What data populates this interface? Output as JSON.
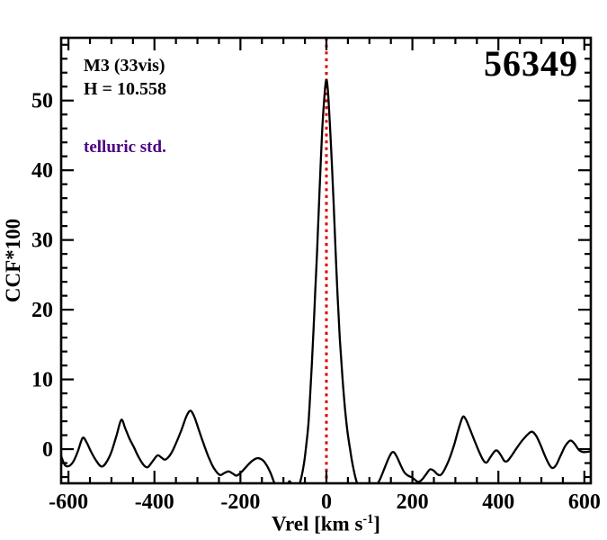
{
  "annotations": {
    "cluster": "M3 (33vis)",
    "magnitude": "H = 10.558",
    "note": "telluric std.",
    "note_color": "#4b0082",
    "id_label": "56349"
  },
  "colors": {
    "background": "#ffffff",
    "frame": "#000000",
    "text": "#000000",
    "curve": "#000000",
    "marker_line": "#dd0000"
  },
  "chart_data": {
    "type": "line",
    "title": "56349",
    "xlabel": "Vrel [km s-1]",
    "xlabel_parts": {
      "main": "Vrel [km s",
      "sup": "-1",
      "close": "]"
    },
    "ylabel": "CCF*100",
    "xlim": [
      -617,
      615
    ],
    "ylim": [
      -4.9,
      59.0
    ],
    "grid": false,
    "legend": "none",
    "x_major_ticks": [
      -600,
      -400,
      -200,
      0,
      200,
      400,
      600
    ],
    "x_minor_step": 50,
    "y_major_ticks": [
      0,
      10,
      20,
      30,
      40,
      50
    ],
    "y_minor_step": 2,
    "marker_line": {
      "x": 0,
      "color": "#dd0000",
      "style": "dotted"
    },
    "series": [
      {
        "name": "CCF",
        "color": "#000000",
        "points": [
          [
            -617,
            -1.0
          ],
          [
            -608,
            -2.3
          ],
          [
            -598,
            -2.4
          ],
          [
            -588,
            -1.7
          ],
          [
            -578,
            -0.3
          ],
          [
            -567,
            1.6
          ],
          [
            -558,
            1.0
          ],
          [
            -548,
            -0.3
          ],
          [
            -535,
            -1.7
          ],
          [
            -523,
            -2.5
          ],
          [
            -512,
            -1.9
          ],
          [
            -500,
            -0.4
          ],
          [
            -488,
            2.0
          ],
          [
            -477,
            4.2
          ],
          [
            -468,
            3.0
          ],
          [
            -458,
            1.5
          ],
          [
            -448,
            0.3
          ],
          [
            -438,
            -1.0
          ],
          [
            -426,
            -2.2
          ],
          [
            -416,
            -2.6
          ],
          [
            -405,
            -1.8
          ],
          [
            -393,
            -0.9
          ],
          [
            -384,
            -1.2
          ],
          [
            -375,
            -1.5
          ],
          [
            -363,
            -0.8
          ],
          [
            -350,
            0.8
          ],
          [
            -337,
            2.8
          ],
          [
            -325,
            4.8
          ],
          [
            -316,
            5.5
          ],
          [
            -307,
            4.6
          ],
          [
            -297,
            2.8
          ],
          [
            -287,
            1.0
          ],
          [
            -275,
            -1.0
          ],
          [
            -262,
            -2.7
          ],
          [
            -248,
            -3.7
          ],
          [
            -237,
            -3.4
          ],
          [
            -227,
            -3.2
          ],
          [
            -218,
            -3.5
          ],
          [
            -209,
            -3.8
          ],
          [
            -198,
            -3.3
          ],
          [
            -186,
            -2.5
          ],
          [
            -173,
            -1.7
          ],
          [
            -161,
            -1.3
          ],
          [
            -150,
            -1.5
          ],
          [
            -140,
            -2.2
          ],
          [
            -130,
            -3.4
          ],
          [
            -120,
            -5.0
          ],
          [
            -110,
            -6.0
          ],
          [
            -100,
            -5.9
          ],
          [
            -91,
            -5.2
          ],
          [
            -86,
            -4.6
          ],
          [
            -80,
            -5.1
          ],
          [
            -72,
            -5.7
          ],
          [
            -65,
            -5.4
          ],
          [
            -58,
            -4.0
          ],
          [
            -52,
            -2.0
          ],
          [
            -47,
            0.5
          ],
          [
            -42,
            3.5
          ],
          [
            -38,
            7.5
          ],
          [
            -34,
            12
          ],
          [
            -30,
            17
          ],
          [
            -26,
            22.5
          ],
          [
            -22,
            28
          ],
          [
            -18,
            34
          ],
          [
            -14,
            40
          ],
          [
            -10,
            45.5
          ],
          [
            -6,
            49.5
          ],
          [
            -3,
            51.8
          ],
          [
            0,
            53
          ],
          [
            3,
            51.8
          ],
          [
            6,
            49
          ],
          [
            9,
            45.5
          ],
          [
            13,
            40.5
          ],
          [
            17,
            35
          ],
          [
            21,
            29
          ],
          [
            26,
            22
          ],
          [
            31,
            16
          ],
          [
            37,
            10.5
          ],
          [
            43,
            6
          ],
          [
            49,
            2.5
          ],
          [
            55,
            0
          ],
          [
            61,
            -2.2
          ],
          [
            68,
            -4.2
          ],
          [
            76,
            -5.6
          ],
          [
            88,
            -6.3
          ],
          [
            100,
            -6.3
          ],
          [
            112,
            -5.6
          ],
          [
            124,
            -4.4
          ],
          [
            136,
            -2.6
          ],
          [
            147,
            -1.0
          ],
          [
            155,
            -0.4
          ],
          [
            163,
            -1.0
          ],
          [
            172,
            -2.2
          ],
          [
            181,
            -3.3
          ],
          [
            190,
            -3.8
          ],
          [
            200,
            -4.1
          ],
          [
            208,
            -4.5
          ],
          [
            214,
            -4.7
          ],
          [
            222,
            -4.4
          ],
          [
            232,
            -3.6
          ],
          [
            241,
            -2.9
          ],
          [
            250,
            -3.1
          ],
          [
            258,
            -3.6
          ],
          [
            266,
            -3.7
          ],
          [
            275,
            -2.9
          ],
          [
            286,
            -1.4
          ],
          [
            297,
            0.6
          ],
          [
            308,
            3.0
          ],
          [
            317,
            4.6
          ],
          [
            324,
            4.3
          ],
          [
            333,
            3.0
          ],
          [
            344,
            1.3
          ],
          [
            356,
            -0.5
          ],
          [
            366,
            -1.7
          ],
          [
            373,
            -1.9
          ],
          [
            381,
            -1.2
          ],
          [
            390,
            -0.4
          ],
          [
            397,
            -0.2
          ],
          [
            406,
            -0.9
          ],
          [
            414,
            -1.7
          ],
          [
            421,
            -1.7
          ],
          [
            430,
            -1.0
          ],
          [
            442,
            0.1
          ],
          [
            455,
            1.2
          ],
          [
            468,
            2.1
          ],
          [
            478,
            2.5
          ],
          [
            488,
            1.9
          ],
          [
            498,
            0.6
          ],
          [
            510,
            -1.2
          ],
          [
            520,
            -2.4
          ],
          [
            527,
            -2.7
          ],
          [
            535,
            -2.2
          ],
          [
            545,
            -0.9
          ],
          [
            555,
            0.4
          ],
          [
            564,
            1.1
          ],
          [
            570,
            1.2
          ],
          [
            578,
            0.7
          ],
          [
            587,
            -0.1
          ],
          [
            596,
            -0.4
          ],
          [
            606,
            -0.4
          ],
          [
            615,
            -0.3
          ]
        ]
      }
    ]
  }
}
